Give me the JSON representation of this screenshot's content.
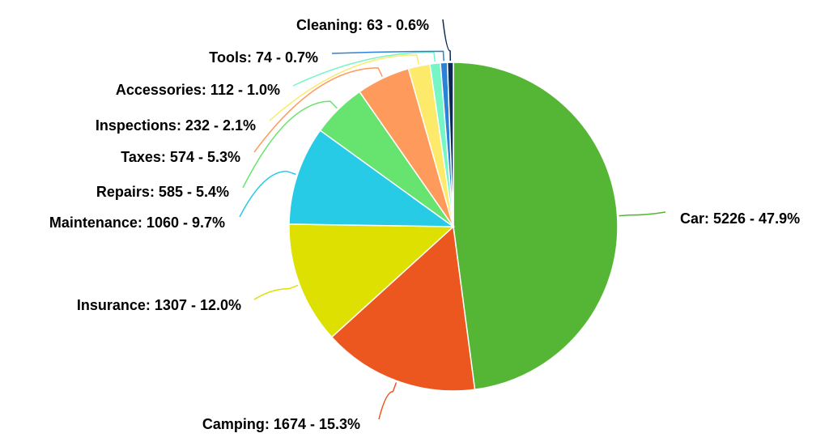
{
  "chart_data": {
    "type": "pie",
    "title": "",
    "slices": [
      {
        "name": "Car",
        "value": 5226,
        "percent": "47.9%",
        "label": "Car: 5226 - 47.9%",
        "color": "#55b636"
      },
      {
        "name": "Camping",
        "value": 1674,
        "percent": "15.3%",
        "label": "Camping: 1674 - 15.3%",
        "color": "#ec571f"
      },
      {
        "name": "Insurance",
        "value": 1307,
        "percent": "12.0%",
        "label": "Insurance: 1307 - 12.0%",
        "color": "#dde000"
      },
      {
        "name": "Maintenance",
        "value": 1060,
        "percent": "9.7%",
        "label": "Maintenance: 1060 - 9.7%",
        "color": "#27cbe6"
      },
      {
        "name": "Repairs",
        "value": 585,
        "percent": "5.4%",
        "label": "Repairs: 585 - 5.4%",
        "color": "#67e36f"
      },
      {
        "name": "Taxes",
        "value": 574,
        "percent": "5.3%",
        "label": "Taxes: 574 - 5.3%",
        "color": "#fd9a5c"
      },
      {
        "name": "Inspections",
        "value": 232,
        "percent": "2.1%",
        "label": "Inspections: 232 - 2.1%",
        "color": "#fdea6b"
      },
      {
        "name": "Accessories",
        "value": 112,
        "percent": "1.0%",
        "label": "Accessories: 112 - 1.0%",
        "color": "#76f5c5"
      },
      {
        "name": "Tools",
        "value": 74,
        "percent": "0.7%",
        "label": "Tools: 74 - 0.7%",
        "color": "#2b83d8"
      },
      {
        "name": "Cleaning",
        "value": 63,
        "percent": "0.6%",
        "label": "Cleaning: 63 - 0.6%",
        "color": "#0d2a55"
      }
    ]
  }
}
